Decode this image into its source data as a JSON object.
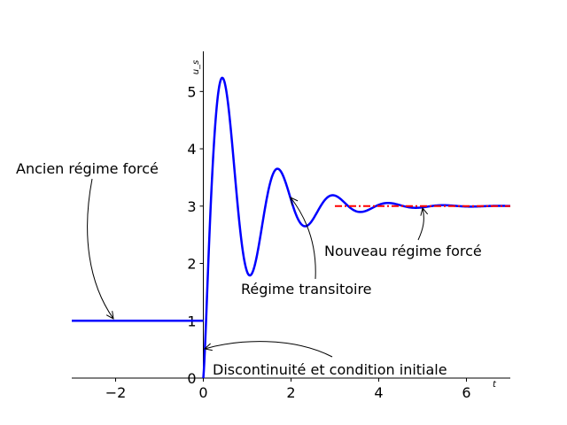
{
  "chart_data": {
    "type": "line",
    "xlabel": "t",
    "ylabel": "u_s",
    "xlim": [
      -3,
      7
    ],
    "ylim": [
      0,
      5.7
    ],
    "x_ticks": [
      -2,
      0,
      2,
      4,
      6
    ],
    "x_tick_labels": [
      "−2",
      "0",
      "2",
      "4",
      "6"
    ],
    "y_ticks": [
      0,
      1,
      2,
      3,
      4,
      5
    ],
    "y_tick_labels": [
      "0",
      "1",
      "2",
      "3",
      "4",
      "5"
    ],
    "grid": false,
    "spines": "left-bottom",
    "series": [
      {
        "style": "solid",
        "color": "#0000ff",
        "x": [
          -3,
          0
        ],
        "y": [
          1,
          1
        ]
      },
      {
        "style": "solid",
        "color": "#0000ff",
        "model": {
          "final": 3,
          "initial": 0,
          "t0": 0,
          "peak_t": 0.47,
          "peak": 5.2,
          "decay": 1.02,
          "period": 1.26
        },
        "x": [
          0,
          0.47,
          1.1,
          1.73,
          2.36,
          3.0,
          3.62,
          4.25,
          4.88,
          5.5,
          7.0
        ],
        "y": [
          0,
          5.2,
          1.83,
          3.63,
          2.66,
          3.18,
          2.9,
          3.05,
          2.97,
          3.02,
          3.0
        ]
      },
      {
        "style": "dashdot",
        "color": "#ff0000",
        "x": [
          3,
          7
        ],
        "y": [
          3,
          3
        ]
      }
    ],
    "annotations": [
      {
        "text": "Ancien régime forcé",
        "target": [
          -2,
          1
        ]
      },
      {
        "text": "Régime transitoire",
        "target": [
          2,
          3.2
        ]
      },
      {
        "text": "Nouveau régime forcé",
        "target": [
          5,
          3
        ]
      },
      {
        "text": "Discontinuité et condition initiale",
        "target": [
          0,
          0.5
        ]
      }
    ]
  }
}
